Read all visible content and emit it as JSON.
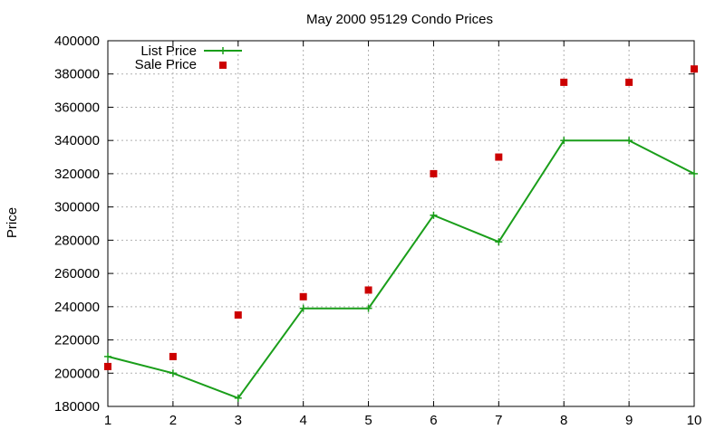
{
  "chart_data": {
    "type": "line",
    "title": "May 2000 95129 Condo Prices",
    "xlabel": "",
    "ylabel": "Price",
    "xlim": [
      1,
      10
    ],
    "ylim": [
      180000,
      400000
    ],
    "x_ticks": [
      "1",
      "2",
      "3",
      "4",
      "5",
      "6",
      "7",
      "8",
      "9",
      "10"
    ],
    "y_ticks": [
      "180000",
      "200000",
      "220000",
      "240000",
      "260000",
      "280000",
      "300000",
      "320000",
      "340000",
      "360000",
      "380000",
      "400000"
    ],
    "grid": true,
    "legend_position": "top-left",
    "series": [
      {
        "name": "List Price",
        "style": "line-with-plus-markers",
        "color": "#1a9e1a",
        "points": [
          {
            "x": 1,
            "y": 210000
          },
          {
            "x": 2,
            "y": 200000
          },
          {
            "x": 3,
            "y": 185000
          },
          {
            "x": 4,
            "y": 239000
          },
          {
            "x": 5,
            "y": 239000
          },
          {
            "x": 6,
            "y": 295000
          },
          {
            "x": 7,
            "y": 279000
          },
          {
            "x": 8,
            "y": 340000
          },
          {
            "x": 9,
            "y": 340000
          },
          {
            "x": 10,
            "y": 320000
          }
        ]
      },
      {
        "name": "Sale Price",
        "style": "square-points",
        "color": "#cc0000",
        "points": [
          {
            "x": 1,
            "y": 204000
          },
          {
            "x": 2,
            "y": 210000
          },
          {
            "x": 3,
            "y": 235000
          },
          {
            "x": 4,
            "y": 246000
          },
          {
            "x": 5,
            "y": 250000
          },
          {
            "x": 6,
            "y": 320000
          },
          {
            "x": 7,
            "y": 330000
          },
          {
            "x": 8,
            "y": 375000
          },
          {
            "x": 9,
            "y": 375000
          },
          {
            "x": 10,
            "y": 383000
          }
        ]
      }
    ]
  }
}
